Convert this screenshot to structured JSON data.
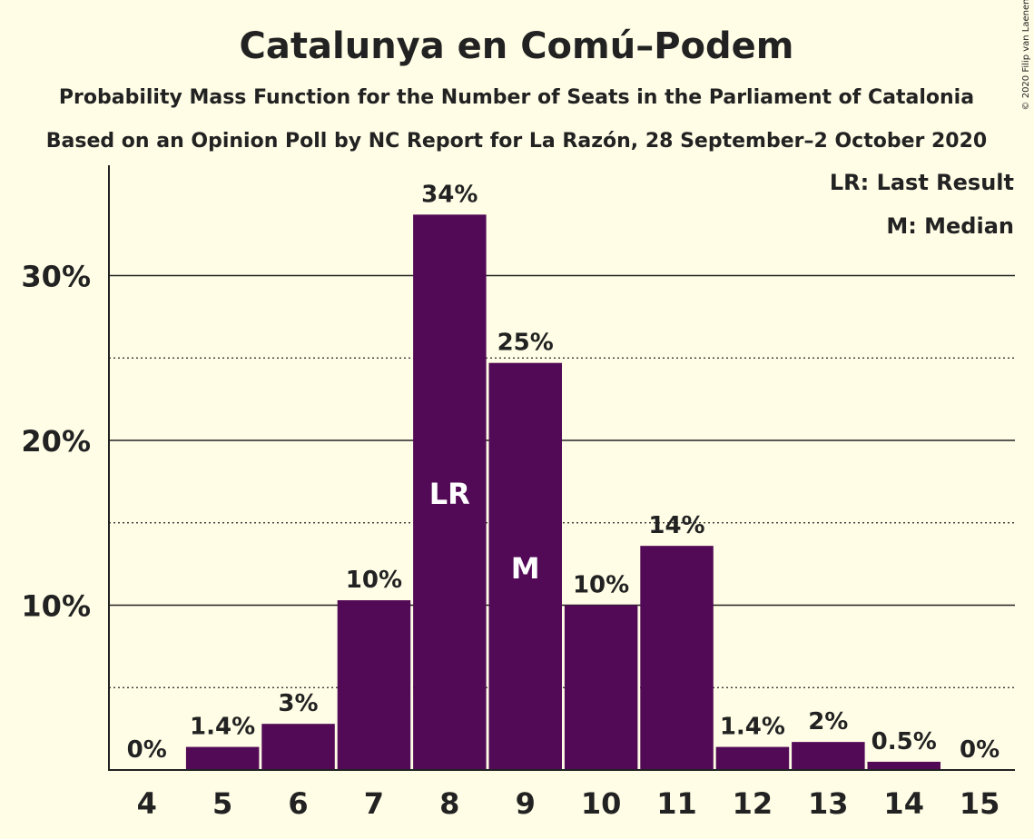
{
  "chart_data": {
    "type": "bar",
    "title": "Catalunya en Comú–Podem",
    "subtitle": "Probability Mass Function for the Number of Seats in the Parliament of Catalonia",
    "source": "Based on an Opinion Poll by NC Report for La Razón, 28 September–2 October 2020",
    "copyright": "© 2020 Filip van Laenen",
    "categories": [
      "4",
      "5",
      "6",
      "7",
      "8",
      "9",
      "10",
      "11",
      "12",
      "13",
      "14",
      "15"
    ],
    "values": [
      0,
      1.4,
      2.8,
      10.3,
      33.7,
      24.7,
      10.0,
      13.6,
      1.4,
      1.7,
      0.5,
      0
    ],
    "data_labels": [
      "0%",
      "1.4%",
      "3%",
      "10%",
      "34%",
      "25%",
      "10%",
      "14%",
      "1.4%",
      "2%",
      "0.5%",
      "0%"
    ],
    "bar_markers": [
      {
        "category": "8",
        "label": "LR"
      },
      {
        "category": "9",
        "label": "M"
      }
    ],
    "legend": [
      "LR: Last Result",
      "M: Median"
    ],
    "legend_position": "top-right",
    "y_ticks": [
      {
        "value": 10,
        "label": "10%"
      },
      {
        "value": 20,
        "label": "20%"
      },
      {
        "value": 30,
        "label": "30%"
      }
    ],
    "y_minor_gridlines": [
      5,
      15,
      25
    ],
    "ylim": [
      0,
      36.5
    ],
    "xlabel": "",
    "ylabel": "",
    "grid": true,
    "colors": {
      "bar": "#520A56",
      "background": "#FFFDE6",
      "text": "#222222",
      "marker_text": "#FFFFFF"
    }
  }
}
